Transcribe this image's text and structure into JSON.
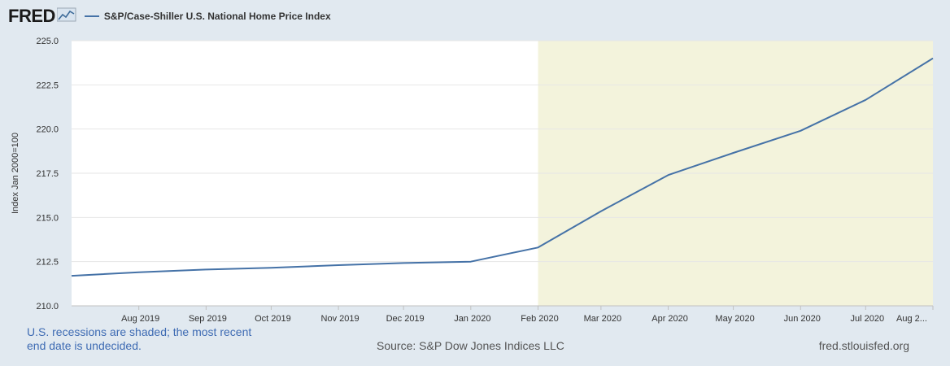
{
  "header": {
    "logo_text": "FRED",
    "logo_icon": "line-chart-icon",
    "legend_label": "S&P/Case-Shiller U.S. National Home Price Index",
    "legend_color": "#4572a7"
  },
  "footer": {
    "recession_note": "U.S. recessions are shaded; the most recent end date is undecided.",
    "source": "Source: S&P Dow Jones Indices LLC",
    "site": "fred.stlouisfed.org"
  },
  "chart_data": {
    "type": "line",
    "ylabel": "Index Jan 2000=100",
    "ylim": [
      210.0,
      225.0
    ],
    "yticks": [
      "210.0",
      "212.5",
      "215.0",
      "217.5",
      "220.0",
      "222.5",
      "225.0"
    ],
    "xlim": [
      "2019-07-01",
      "2020-08-01"
    ],
    "xticks": [
      {
        "date": "2019-08-01",
        "label": "Aug 2019"
      },
      {
        "date": "2019-09-01",
        "label": "Sep 2019"
      },
      {
        "date": "2019-10-01",
        "label": "Oct 2019"
      },
      {
        "date": "2019-11-01",
        "label": "Nov 2019"
      },
      {
        "date": "2019-12-01",
        "label": "Dec 2019"
      },
      {
        "date": "2020-01-01",
        "label": "Jan 2020"
      },
      {
        "date": "2020-02-01",
        "label": "Feb 2020"
      },
      {
        "date": "2020-03-01",
        "label": "Mar 2020"
      },
      {
        "date": "2020-04-01",
        "label": "Apr 2020"
      },
      {
        "date": "2020-05-01",
        "label": "May 2020"
      },
      {
        "date": "2020-06-01",
        "label": "Jun 2020"
      },
      {
        "date": "2020-07-01",
        "label": "Jul 2020"
      },
      {
        "date": "2020-08-01",
        "label": "Aug 2..."
      }
    ],
    "recession": {
      "start": "2020-02-01",
      "end": "2020-08-01",
      "color": "#f3f3dc"
    },
    "grid": true,
    "series": [
      {
        "name": "S&P/Case-Shiller U.S. National Home Price Index",
        "color": "#4572a7",
        "x": [
          "2019-07-01",
          "2019-08-01",
          "2019-09-01",
          "2019-10-01",
          "2019-11-01",
          "2019-12-01",
          "2020-01-01",
          "2020-02-01",
          "2020-03-01",
          "2020-04-01",
          "2020-05-01",
          "2020-06-01",
          "2020-07-01",
          "2020-08-01"
        ],
        "values": [
          211.7,
          211.9,
          212.05,
          212.15,
          212.3,
          212.42,
          212.5,
          213.3,
          215.35,
          217.4,
          218.65,
          219.9,
          221.65,
          224.0
        ]
      }
    ]
  }
}
